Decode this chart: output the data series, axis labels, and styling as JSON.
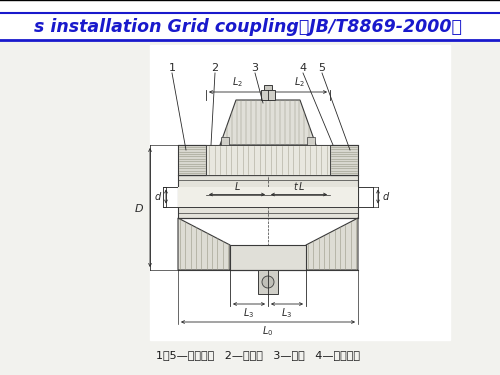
{
  "title_text": "s installation Grid coupling（JB/T8869-2000）",
  "title_color": "#1919cc",
  "title_bg": "#ffffff",
  "title_border_top": "#000000",
  "title_border_bot": "#1919cc",
  "bg_color": "#f2f2ee",
  "caption": "1、5—半联轴器   2—润滑孔   3—罩壳   4—蛇形弹簧",
  "figsize": [
    5.0,
    3.75
  ],
  "dpi": 100,
  "line_color": "#3a3a3a",
  "dim_color": "#2a2a2a"
}
